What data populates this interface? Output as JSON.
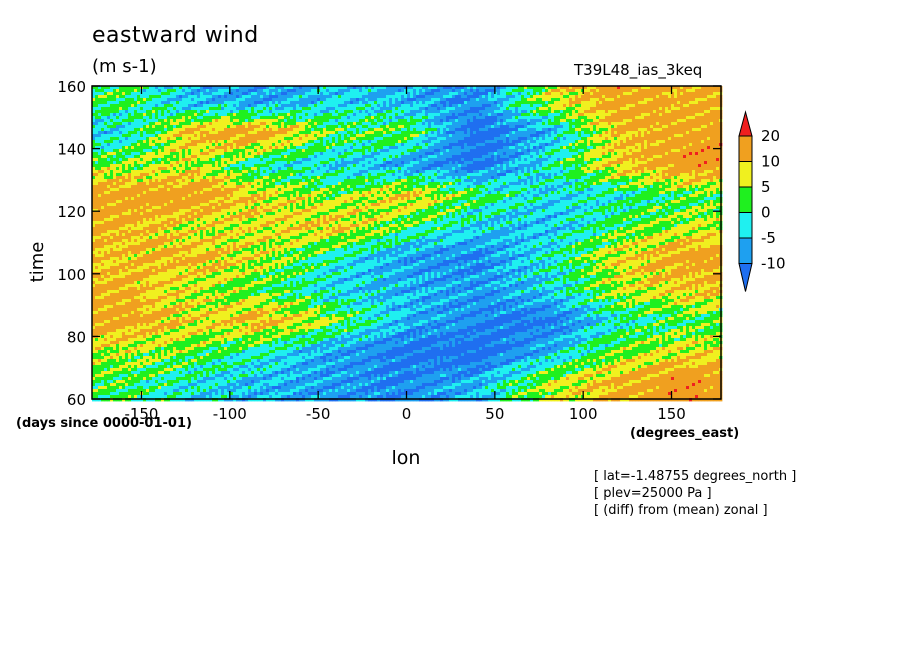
{
  "title": "eastward wind",
  "units": "(m s-1)",
  "run_id": "T39L48_ias_3keq",
  "info_lines": [
    "[ lat=-1.48755 degrees_north ]",
    "[ plev=25000 Pa ]",
    "[ (diff) from (mean) zonal ]"
  ],
  "colors": {
    "c_neg15": "#1f6ff0",
    "c_neg10": "#1ea0f0",
    "c_neg5": "#1ff0f0",
    "c_0": "#1ff01f",
    "c_5": "#f0f01f",
    "c_10": "#f0a01f",
    "c_20": "#f01f1f"
  },
  "chart_data": {
    "type": "heatmap",
    "title": "eastward wind",
    "subtitle": "(m s-1)",
    "xlabel": "lon",
    "ylabel": "time",
    "x_units": "(degrees_east)",
    "y_units": "(days since 0000-01-01)",
    "xlim": [
      -178,
      178
    ],
    "ylim": [
      60,
      160
    ],
    "x_ticks": [
      -150,
      -100,
      -50,
      0,
      50,
      100,
      150
    ],
    "y_ticks": [
      60,
      80,
      100,
      120,
      140,
      160
    ],
    "x_tick_labels": [
      "-150",
      "-100",
      "-50",
      "0",
      "50",
      "100",
      "150"
    ],
    "y_tick_labels": [
      "60",
      "80",
      "100",
      "120",
      "140",
      "160"
    ],
    "colorbar": {
      "levels": [
        -10,
        -5,
        0,
        5,
        10,
        20
      ],
      "labels": [
        "20",
        "10",
        "5",
        "0",
        "-5",
        "-10"
      ],
      "colors": [
        "#1f6ff0",
        "#1ea0f0",
        "#1ff0f0",
        "#1ff01f",
        "#f0f01f",
        "#f0a01f",
        "#f01f1f"
      ]
    },
    "field_grid": {
      "lon": [
        -160,
        -120,
        -80,
        -40,
        0,
        40,
        80,
        120,
        160
      ],
      "time": [
        65,
        75,
        85,
        95,
        105,
        115,
        125,
        135,
        145,
        155
      ],
      "u": [
        [
          2,
          -3,
          -6,
          -8,
          -10,
          -6,
          6,
          12,
          16
        ],
        [
          6,
          3,
          -2,
          -8,
          -12,
          -14,
          -6,
          4,
          8
        ],
        [
          14,
          8,
          12,
          4,
          -6,
          -10,
          -12,
          -2,
          2
        ],
        [
          12,
          6,
          2,
          -4,
          -6,
          -8,
          -4,
          6,
          10
        ],
        [
          10,
          12,
          6,
          -2,
          -8,
          -10,
          -2,
          8,
          14
        ],
        [
          12,
          6,
          8,
          10,
          2,
          -4,
          -6,
          2,
          6
        ],
        [
          14,
          16,
          8,
          4,
          10,
          2,
          -4,
          -2,
          2
        ],
        [
          4,
          6,
          -2,
          -4,
          -8,
          -12,
          -2,
          10,
          16
        ],
        [
          -4,
          12,
          14,
          2,
          4,
          -14,
          -6,
          10,
          14
        ],
        [
          2,
          -6,
          -8,
          -4,
          -6,
          -10,
          6,
          14,
          12
        ]
      ]
    }
  }
}
